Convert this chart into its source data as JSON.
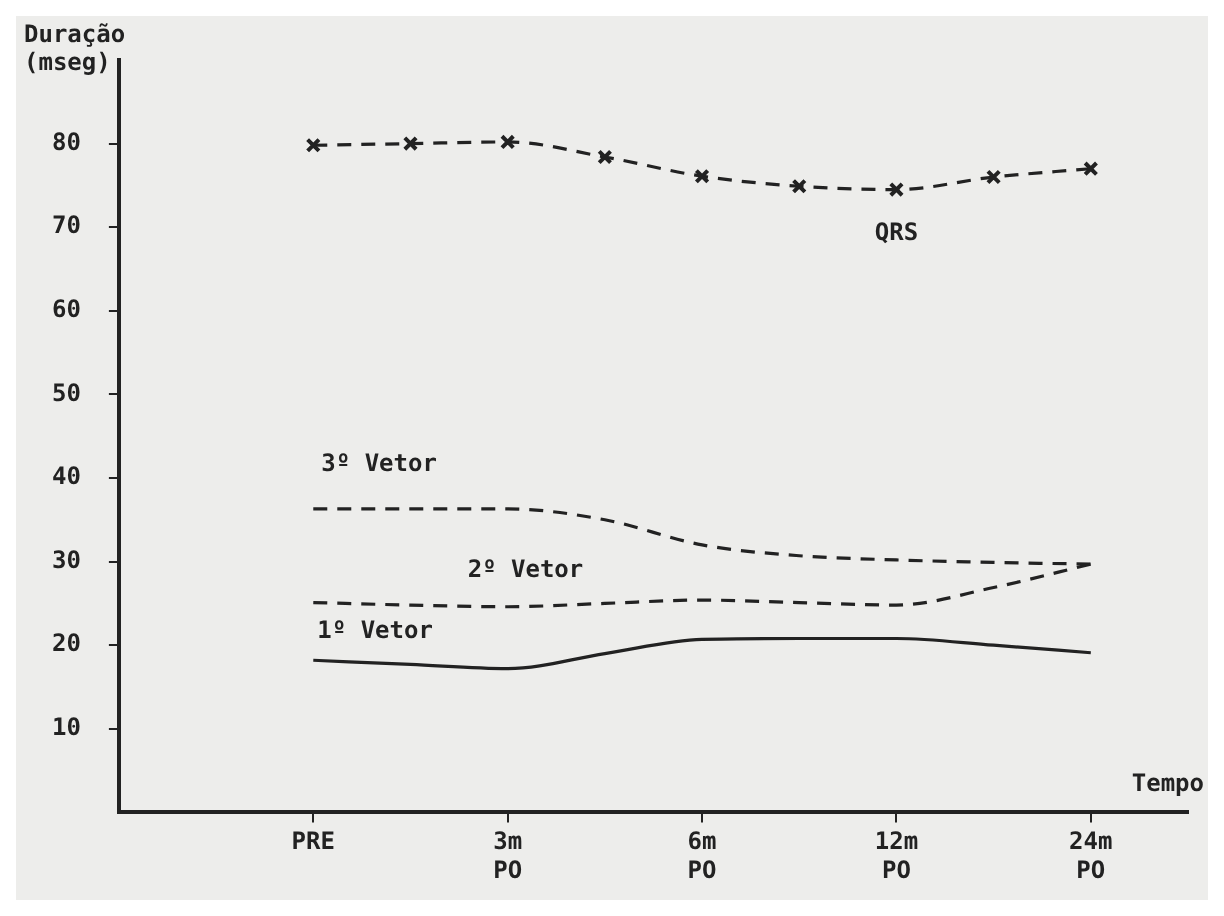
{
  "chart_data": {
    "type": "line",
    "ylabel": "Duração (mseg)",
    "xlabel": "Tempo",
    "categories": [
      null,
      null,
      "PRE",
      null,
      "3m PO",
      null,
      "6m PO",
      null,
      "12m PO",
      null,
      "24m PO",
      null
    ],
    "ylim": [
      0,
      90
    ],
    "yticks": [
      10,
      20,
      30,
      40,
      50,
      60,
      70,
      80
    ],
    "grid": false,
    "legend": false,
    "series": [
      {
        "name": "QRS",
        "color": "#222222",
        "marker": "cross",
        "line_style": "dashed",
        "values": [
          null,
          null,
          79.8,
          80,
          80.2,
          78.4,
          76.1,
          74.9,
          74.5,
          76,
          77,
          null
        ]
      },
      {
        "name": "3º Vetor",
        "color": "#222222",
        "marker": "none",
        "line_style": "dashed",
        "values": [
          null,
          null,
          36.3,
          36.3,
          36.3,
          35,
          32,
          30.7,
          30.2,
          29.9,
          29.7,
          null
        ]
      },
      {
        "name": "2º Vetor",
        "color": "#222222",
        "marker": "none",
        "line_style": "dashed",
        "values": [
          null,
          null,
          25.1,
          24.8,
          24.6,
          25,
          25.4,
          25.1,
          24.8,
          26.9,
          29.7,
          null
        ]
      },
      {
        "name": "1º Vetor",
        "color": "#222222",
        "marker": "none",
        "line_style": "solid",
        "values": [
          null,
          null,
          18.2,
          17.7,
          17.2,
          19,
          20.7,
          20.8,
          20.8,
          20,
          19.1,
          null
        ]
      }
    ]
  }
}
